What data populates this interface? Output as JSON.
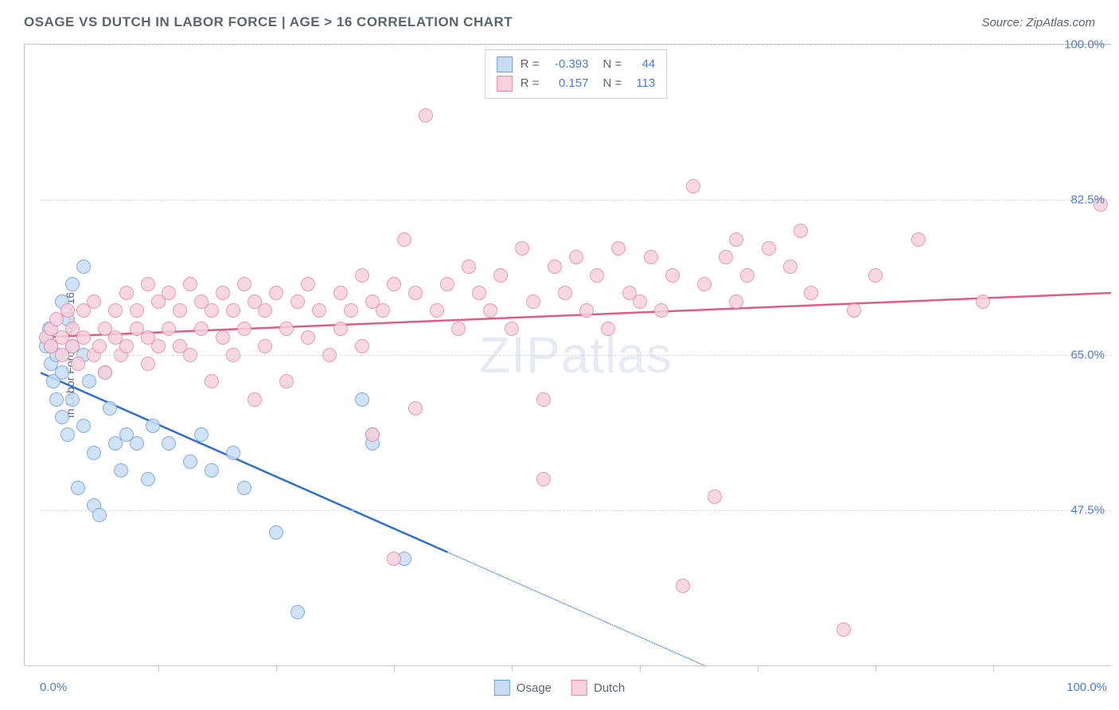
{
  "header": {
    "title": "OSAGE VS DUTCH IN LABOR FORCE | AGE > 16 CORRELATION CHART",
    "source": "Source: ZipAtlas.com"
  },
  "chart": {
    "type": "scatter",
    "ylabel": "In Labor Force | Age > 16",
    "watermark": "ZIPatlas",
    "background_color": "#ffffff",
    "grid_color": "#d8d8d8",
    "axis_color": "#c7c7c7",
    "tick_label_color": "#4a7bd0",
    "xlim": [
      0,
      100
    ],
    "ylim": [
      30,
      100
    ],
    "x_axis_labels": {
      "left": "0.0%",
      "right": "100.0%"
    },
    "y_ticks": [
      {
        "value": 47.5,
        "label": "47.5%"
      },
      {
        "value": 65.0,
        "label": "65.0%"
      },
      {
        "value": 82.5,
        "label": "82.5%"
      },
      {
        "value": 100.0,
        "label": "100.0%"
      }
    ],
    "x_tick_positions": [
      11,
      22,
      33,
      44,
      56,
      67,
      78,
      89
    ],
    "series": [
      {
        "name": "Osage",
        "label": "Osage",
        "fill_color": "#c8ddf4",
        "stroke_color": "#6f9fd8",
        "line_color": "#2f6fd0",
        "marker_radius": 9,
        "marker_opacity": 0.85,
        "R": "-0.393",
        "N": "44",
        "trend": {
          "x1": 0,
          "y1": 63,
          "x2": 62,
          "y2": 30,
          "solid_until_x": 38
        },
        "points": [
          [
            0.5,
            66
          ],
          [
            0.6,
            67
          ],
          [
            0.8,
            68
          ],
          [
            1,
            66
          ],
          [
            1,
            64
          ],
          [
            1.2,
            62
          ],
          [
            1.5,
            65
          ],
          [
            1.5,
            60
          ],
          [
            2,
            71
          ],
          [
            2,
            63
          ],
          [
            2,
            58
          ],
          [
            2.5,
            69
          ],
          [
            2.5,
            56
          ],
          [
            3,
            66
          ],
          [
            3,
            73
          ],
          [
            3,
            60
          ],
          [
            3.5,
            50
          ],
          [
            4,
            65
          ],
          [
            4,
            75
          ],
          [
            4,
            57
          ],
          [
            4.5,
            62
          ],
          [
            5,
            54
          ],
          [
            5,
            48
          ],
          [
            5.5,
            47
          ],
          [
            6,
            63
          ],
          [
            6.5,
            59
          ],
          [
            7,
            55
          ],
          [
            7.5,
            52
          ],
          [
            8,
            56
          ],
          [
            9,
            55
          ],
          [
            10,
            51
          ],
          [
            10.5,
            57
          ],
          [
            12,
            55
          ],
          [
            14,
            53
          ],
          [
            15,
            56
          ],
          [
            16,
            52
          ],
          [
            18,
            54
          ],
          [
            19,
            50
          ],
          [
            22,
            45
          ],
          [
            24,
            36
          ],
          [
            30,
            60
          ],
          [
            31,
            56
          ],
          [
            31,
            55
          ],
          [
            34,
            42
          ]
        ]
      },
      {
        "name": "Dutch",
        "label": "Dutch",
        "fill_color": "#f6d1dd",
        "stroke_color": "#e38aa6",
        "line_color": "#e05b8a",
        "marker_radius": 9,
        "marker_opacity": 0.85,
        "R": "0.157",
        "N": "113",
        "trend": {
          "x1": 0,
          "y1": 67,
          "x2": 100,
          "y2": 72,
          "solid_until_x": 100
        },
        "points": [
          [
            0.5,
            67
          ],
          [
            1,
            68
          ],
          [
            1,
            66
          ],
          [
            1.5,
            69
          ],
          [
            2,
            67
          ],
          [
            2,
            65
          ],
          [
            2.5,
            70
          ],
          [
            3,
            66
          ],
          [
            3,
            68
          ],
          [
            3.5,
            64
          ],
          [
            4,
            70
          ],
          [
            4,
            67
          ],
          [
            5,
            65
          ],
          [
            5,
            71
          ],
          [
            5.5,
            66
          ],
          [
            6,
            68
          ],
          [
            6,
            63
          ],
          [
            7,
            70
          ],
          [
            7,
            67
          ],
          [
            7.5,
            65
          ],
          [
            8,
            72
          ],
          [
            8,
            66
          ],
          [
            9,
            68
          ],
          [
            9,
            70
          ],
          [
            10,
            73
          ],
          [
            10,
            67
          ],
          [
            10,
            64
          ],
          [
            11,
            71
          ],
          [
            11,
            66
          ],
          [
            12,
            72
          ],
          [
            12,
            68
          ],
          [
            13,
            70
          ],
          [
            13,
            66
          ],
          [
            14,
            65
          ],
          [
            14,
            73
          ],
          [
            15,
            71
          ],
          [
            15,
            68
          ],
          [
            16,
            62
          ],
          [
            16,
            70
          ],
          [
            17,
            72
          ],
          [
            17,
            67
          ],
          [
            18,
            70
          ],
          [
            18,
            65
          ],
          [
            19,
            73
          ],
          [
            19,
            68
          ],
          [
            20,
            60
          ],
          [
            20,
            71
          ],
          [
            21,
            70
          ],
          [
            21,
            66
          ],
          [
            22,
            72
          ],
          [
            23,
            68
          ],
          [
            23,
            62
          ],
          [
            24,
            71
          ],
          [
            25,
            73
          ],
          [
            25,
            67
          ],
          [
            26,
            70
          ],
          [
            27,
            65
          ],
          [
            28,
            72
          ],
          [
            28,
            68
          ],
          [
            29,
            70
          ],
          [
            30,
            74
          ],
          [
            30,
            66
          ],
          [
            31,
            71
          ],
          [
            31,
            56
          ],
          [
            32,
            70
          ],
          [
            33,
            73
          ],
          [
            33,
            42
          ],
          [
            34,
            78
          ],
          [
            35,
            72
          ],
          [
            35,
            59
          ],
          [
            36,
            92
          ],
          [
            37,
            70
          ],
          [
            38,
            73
          ],
          [
            39,
            68
          ],
          [
            40,
            75
          ],
          [
            41,
            72
          ],
          [
            42,
            70
          ],
          [
            43,
            74
          ],
          [
            44,
            68
          ],
          [
            45,
            77
          ],
          [
            46,
            71
          ],
          [
            47,
            51
          ],
          [
            47,
            60
          ],
          [
            48,
            75
          ],
          [
            49,
            72
          ],
          [
            50,
            76
          ],
          [
            51,
            70
          ],
          [
            52,
            74
          ],
          [
            53,
            68
          ],
          [
            54,
            77
          ],
          [
            55,
            72
          ],
          [
            56,
            71
          ],
          [
            57,
            76
          ],
          [
            58,
            70
          ],
          [
            59,
            74
          ],
          [
            60,
            39
          ],
          [
            61,
            84
          ],
          [
            62,
            73
          ],
          [
            63,
            49
          ],
          [
            64,
            76
          ],
          [
            65,
            71
          ],
          [
            65,
            78
          ],
          [
            66,
            74
          ],
          [
            68,
            77
          ],
          [
            70,
            75
          ],
          [
            71,
            79
          ],
          [
            72,
            72
          ],
          [
            75,
            34
          ],
          [
            76,
            70
          ],
          [
            78,
            74
          ],
          [
            82,
            78
          ],
          [
            88,
            71
          ],
          [
            99,
            82
          ]
        ]
      }
    ],
    "legend": {
      "items": [
        {
          "label": "Osage",
          "series": "Osage"
        },
        {
          "label": "Dutch",
          "series": "Dutch"
        }
      ]
    }
  }
}
